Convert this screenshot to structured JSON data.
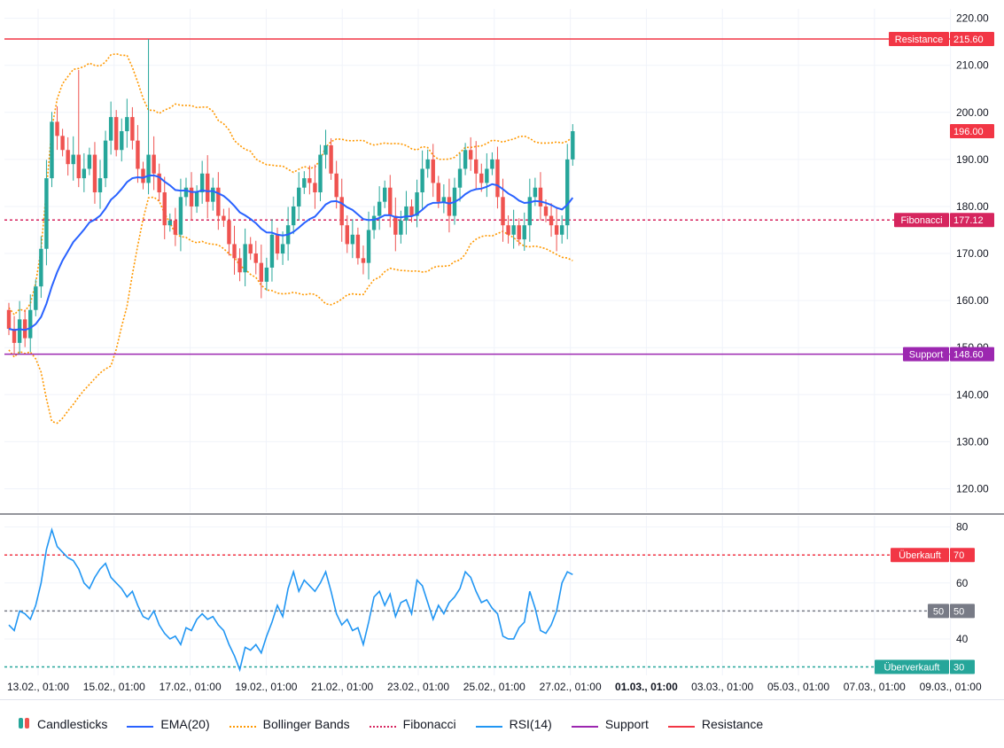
{
  "chart_data": {
    "type": "candlestick",
    "x_labels": [
      "13.02., 01:00",
      "15.02., 01:00",
      "17.02., 01:00",
      "19.02., 01:00",
      "21.02., 01:00",
      "23.02., 01:00",
      "25.02., 01:00",
      "27.02., 01:00",
      "01.03., 01:00",
      "03.03., 01:00",
      "05.03., 01:00",
      "07.03., 01:00",
      "09.03., 01:00"
    ],
    "price_axis": {
      "min": 115,
      "max": 222,
      "ticks": [
        120,
        130,
        140,
        150,
        160,
        170,
        180,
        190,
        200,
        210,
        220
      ]
    },
    "rsi_axis": {
      "min": 27,
      "max": 84,
      "ticks": [
        40,
        50,
        60,
        70,
        80
      ]
    },
    "levels": {
      "resistance": {
        "name": "Resistance",
        "value": 215.6,
        "color": "#f23645"
      },
      "fibonacci": {
        "name": "Fibonacci",
        "value": 177.12,
        "color": "#d6255e"
      },
      "support": {
        "name": "Support",
        "value": 148.6,
        "color": "#9c27b0"
      },
      "last_price": {
        "value": 196.0,
        "color": "#f23645"
      }
    },
    "rsi_levels": {
      "overbought": {
        "name": "Überkauft",
        "value": 70,
        "color": "#f23645"
      },
      "mid": {
        "value": 50,
        "color": "#787b86"
      },
      "oversold": {
        "name": "Überverkauft",
        "value": 30,
        "color": "#26a69a"
      }
    },
    "rsi_current": 63,
    "colors": {
      "up": "#26a69a",
      "down": "#ef5350",
      "ema": "#2962ff",
      "bollinger": "#ff9800",
      "rsi": "#2196f3"
    },
    "close_path": [
      154,
      151,
      156,
      152,
      158,
      163,
      171,
      186,
      198,
      195,
      192,
      189,
      191,
      186,
      188,
      191,
      183,
      186,
      194,
      199,
      192,
      196,
      199,
      194,
      188,
      185,
      191,
      187,
      183,
      176,
      177,
      174,
      182,
      184,
      180,
      183,
      187,
      181,
      184,
      178,
      177,
      172,
      169,
      166,
      172,
      170,
      168,
      164,
      167,
      174,
      170,
      172,
      176,
      180,
      184,
      186,
      185,
      183,
      191,
      193,
      187,
      182,
      176,
      172,
      174,
      169,
      168,
      175,
      178,
      181,
      184,
      178,
      174,
      177,
      180,
      178,
      183,
      188,
      190,
      185,
      181,
      182,
      178,
      184,
      188,
      192,
      190,
      187,
      185,
      188,
      190,
      182,
      176,
      174,
      176,
      173,
      176,
      182,
      184,
      180,
      178,
      176,
      174,
      176,
      190,
      196
    ],
    "rsi_values": [
      45,
      43,
      50,
      49,
      47,
      52,
      60,
      72,
      79,
      73,
      71,
      69,
      68,
      65,
      60,
      58,
      62,
      65,
      67,
      62,
      60,
      58,
      55,
      57,
      52,
      48,
      47,
      50,
      45,
      42,
      40,
      41,
      38,
      44,
      43,
      47,
      49,
      47,
      48,
      45,
      43,
      38,
      34,
      29,
      37,
      36,
      38,
      35,
      41,
      46,
      52,
      48,
      58,
      64,
      57,
      61,
      59,
      57,
      60,
      64,
      57,
      49,
      45,
      47,
      43,
      44,
      38,
      46,
      55,
      57,
      52,
      56,
      48,
      53,
      54,
      49,
      61,
      59,
      53,
      47,
      52,
      49,
      53,
      55,
      58,
      64,
      62,
      57,
      53,
      54,
      51,
      49,
      41,
      40,
      40,
      44,
      46,
      57,
      51,
      43,
      42,
      45,
      50,
      60,
      64,
      63
    ]
  },
  "legend": [
    {
      "label": "Candlesticks",
      "kind": "candle"
    },
    {
      "label": "EMA(20)",
      "kind": "line",
      "color": "#2962ff"
    },
    {
      "label": "Bollinger Bands",
      "kind": "dotted",
      "color": "#ff9800"
    },
    {
      "label": "Fibonacci",
      "kind": "dotted",
      "color": "#d6255e"
    },
    {
      "label": "RSI(14)",
      "kind": "line",
      "color": "#2196f3"
    },
    {
      "label": "Support",
      "kind": "line",
      "color": "#9c27b0"
    },
    {
      "label": "Resistance",
      "kind": "line",
      "color": "#f23645"
    }
  ]
}
